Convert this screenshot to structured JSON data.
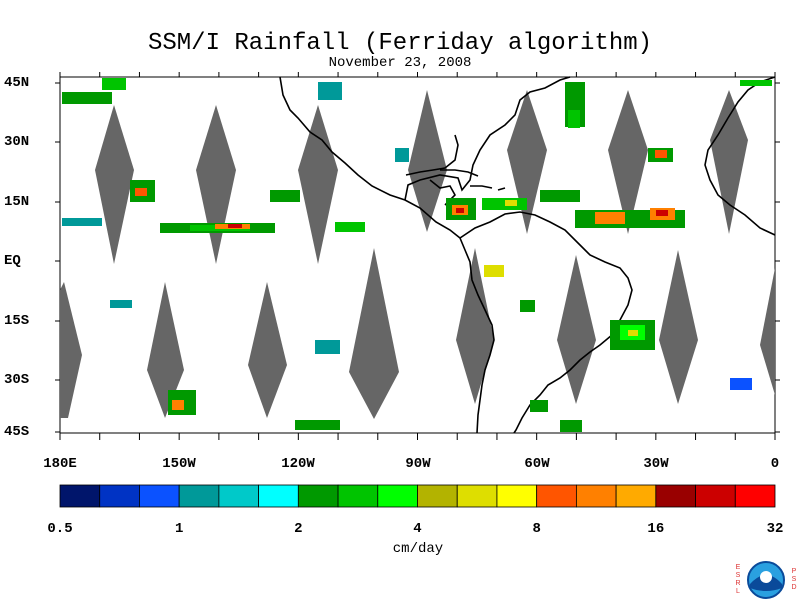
{
  "title": "SSM/I Rainfall (Ferriday algorithm)",
  "date": "November 23, 2008",
  "lat_labels": [
    "45N",
    "30N",
    "15N",
    "EQ",
    "15S",
    "30S",
    "45S"
  ],
  "lon_labels": [
    "180E",
    "150W",
    "120W",
    "90W",
    "60W",
    "30W",
    "0"
  ],
  "colorbar": {
    "unit": "cm/day",
    "tick_labels": [
      "0.5",
      "1",
      "2",
      "4",
      "8",
      "16",
      "32"
    ],
    "colors": [
      "#00156b",
      "#0033c4",
      "#0b52ff",
      "#009999",
      "#00c9c9",
      "#00ffff",
      "#009900",
      "#00c400",
      "#00ff00",
      "#b3b300",
      "#dede00",
      "#ffff00",
      "#ff5500",
      "#ff8000",
      "#ffaa00",
      "#990000",
      "#cc0000",
      "#ff0000"
    ]
  },
  "logo": {
    "left_letters": "ESRL",
    "right_letters": "PSD"
  }
}
